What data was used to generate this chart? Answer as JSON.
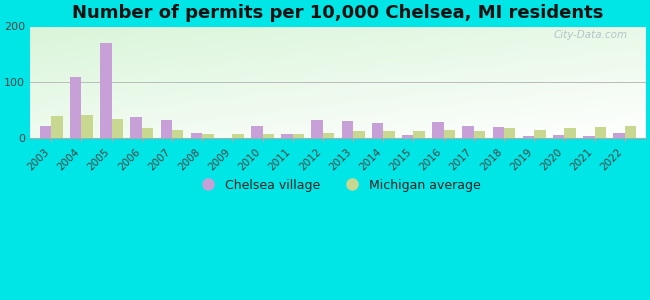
{
  "title": "Number of permits per 10,000 Chelsea, MI residents",
  "years": [
    2003,
    2004,
    2005,
    2006,
    2007,
    2008,
    2009,
    2010,
    2011,
    2012,
    2013,
    2014,
    2015,
    2016,
    2017,
    2018,
    2019,
    2020,
    2021,
    2022
  ],
  "chelsea": [
    22,
    110,
    170,
    38,
    32,
    10,
    0,
    22,
    8,
    32,
    30,
    27,
    5,
    28,
    22,
    20,
    4,
    5,
    4,
    10
  ],
  "michigan": [
    40,
    42,
    35,
    18,
    15,
    8,
    7,
    8,
    8,
    10,
    12,
    12,
    12,
    14,
    12,
    18,
    15,
    18,
    20,
    22
  ],
  "ylim": [
    0,
    200
  ],
  "yticks": [
    0,
    100,
    200
  ],
  "chelsea_color": "#c8a0d8",
  "michigan_color": "#c8d890",
  "bg_color_top": "#d8f0d0",
  "bg_color_bottom": "#f0faf0",
  "outer_color": "#00e5e5",
  "title_fontsize": 13,
  "legend_chelsea": "Chelsea village",
  "legend_michigan": "Michigan average",
  "bar_width": 0.38
}
